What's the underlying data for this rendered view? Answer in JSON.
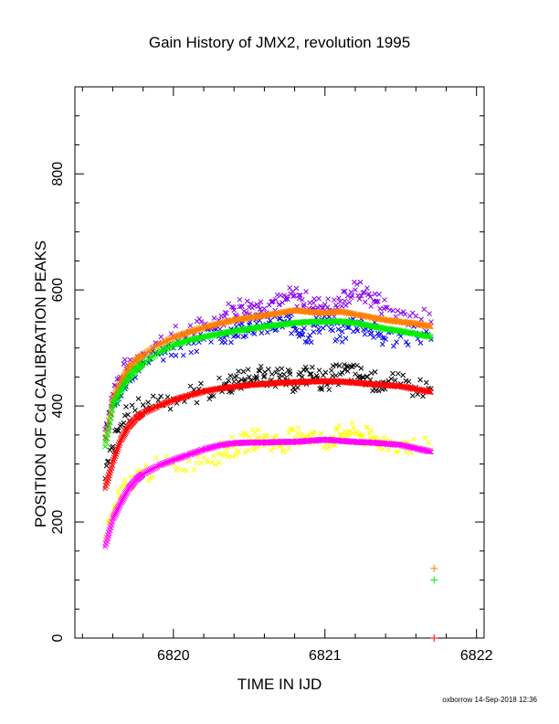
{
  "chart_data": {
    "type": "scatter",
    "title": "Gain History of JMX2, revolution 1995",
    "xlabel": "TIME IN IJD",
    "ylabel": "POSITION OF Cd CALIBRATION PEAKS",
    "xlim": [
      6819.35,
      6822.05
    ],
    "ylim": [
      0,
      950
    ],
    "xticks": [
      6820,
      6821,
      6822
    ],
    "xtick_labels": [
      "6820",
      "6821",
      "6822"
    ],
    "yticks": [
      0,
      200,
      400,
      600,
      800
    ],
    "ytick_labels": [
      "0",
      "200",
      "400",
      "600",
      "800"
    ],
    "grid": false,
    "footer": "oxborrow 14-Sep-2018 12:36",
    "series": [
      {
        "color": "#ff7f00",
        "marker": "x",
        "noisy": false,
        "x": [
          6819.55,
          6819.6,
          6819.65,
          6819.7,
          6819.75,
          6819.8,
          6819.9,
          6820.0,
          6820.1,
          6820.2,
          6820.3,
          6820.4,
          6820.5,
          6820.6,
          6820.7,
          6820.8,
          6820.9,
          6821.0,
          6821.1,
          6821.2,
          6821.3,
          6821.4,
          6821.5,
          6821.6,
          6821.7
        ],
        "y": [
          340,
          410,
          440,
          463,
          477,
          488,
          505,
          518,
          527,
          535,
          542,
          548,
          552,
          556,
          560,
          565,
          562,
          560,
          563,
          558,
          553,
          548,
          545,
          542,
          537
        ]
      },
      {
        "color": "#00ee00",
        "marker": "x",
        "noisy": false,
        "x": [
          6819.55,
          6819.6,
          6819.65,
          6819.7,
          6819.75,
          6819.8,
          6819.9,
          6820.0,
          6820.1,
          6820.2,
          6820.3,
          6820.4,
          6820.5,
          6820.6,
          6820.7,
          6820.8,
          6820.9,
          6821.0,
          6821.1,
          6821.2,
          6821.3,
          6821.4,
          6821.5,
          6821.6,
          6821.7
        ],
        "y": [
          330,
          400,
          425,
          447,
          462,
          473,
          492,
          505,
          513,
          519,
          524,
          529,
          533,
          537,
          540,
          543,
          545,
          545,
          546,
          543,
          538,
          533,
          529,
          524,
          519
        ]
      },
      {
        "color": "#ff0000",
        "marker": "x",
        "noisy": false,
        "x": [
          6819.55,
          6819.6,
          6819.65,
          6819.7,
          6819.75,
          6819.8,
          6819.9,
          6820.0,
          6820.1,
          6820.2,
          6820.3,
          6820.4,
          6820.5,
          6820.6,
          6820.7,
          6820.8,
          6820.9,
          6821.0,
          6821.1,
          6821.2,
          6821.3,
          6821.4,
          6821.5,
          6821.6,
          6821.7
        ],
        "y": [
          258,
          303,
          340,
          363,
          378,
          388,
          400,
          410,
          418,
          425,
          430,
          433,
          436,
          438,
          440,
          441,
          442,
          443,
          442,
          440,
          438,
          436,
          434,
          429,
          424
        ]
      },
      {
        "color": "#ff00ff",
        "marker": "x",
        "noisy": false,
        "x": [
          6819.55,
          6819.6,
          6819.65,
          6819.7,
          6819.75,
          6819.8,
          6819.9,
          6820.0,
          6820.1,
          6820.2,
          6820.3,
          6820.4,
          6820.5,
          6820.6,
          6820.7,
          6820.8,
          6820.9,
          6821.0,
          6821.1,
          6821.2,
          6821.3,
          6821.4,
          6821.5,
          6821.6,
          6821.7
        ],
        "y": [
          158,
          205,
          232,
          256,
          272,
          283,
          297,
          307,
          316,
          325,
          332,
          336,
          337,
          337,
          338,
          338,
          340,
          342,
          340,
          338,
          337,
          335,
          333,
          327,
          321
        ]
      },
      {
        "color": "#8800ee",
        "marker": "x",
        "noisy": true,
        "x": [
          6819.55,
          6819.6,
          6819.65,
          6819.7,
          6819.8,
          6819.9,
          6820.0,
          6820.1,
          6820.2,
          6820.3,
          6820.35,
          6820.4,
          6820.45,
          6820.5,
          6820.55,
          6820.6,
          6820.65,
          6820.7,
          6820.75,
          6820.8,
          6820.85,
          6820.9,
          6820.95,
          6821.0,
          6821.05,
          6821.1,
          6821.15,
          6821.2,
          6821.25,
          6821.3,
          6821.35,
          6821.4,
          6821.5,
          6821.6,
          6821.7
        ],
        "y": [
          360,
          420,
          450,
          470,
          490,
          508,
          520,
          528,
          538,
          548,
          560,
          565,
          572,
          570,
          575,
          568,
          580,
          575,
          585,
          590,
          583,
          578,
          570,
          575,
          565,
          580,
          590,
          600,
          595,
          588,
          580,
          570,
          560,
          555,
          545
        ]
      },
      {
        "color": "#0000ee",
        "marker": "x",
        "noisy": true,
        "x": [
          6819.55,
          6819.6,
          6819.65,
          6819.7,
          6819.8,
          6819.9,
          6820.0,
          6820.1,
          6820.2,
          6820.3,
          6820.35,
          6820.4,
          6820.45,
          6820.5,
          6820.55,
          6820.6,
          6820.65,
          6820.7,
          6820.75,
          6820.8,
          6820.85,
          6820.9,
          6820.95,
          6821.0,
          6821.05,
          6821.1,
          6821.15,
          6821.2,
          6821.25,
          6821.3,
          6821.35,
          6821.4,
          6821.5,
          6821.6,
          6821.7
        ],
        "y": [
          345,
          405,
          430,
          452,
          475,
          490,
          500,
          508,
          515,
          520,
          525,
          530,
          535,
          540,
          542,
          538,
          536,
          540,
          545,
          538,
          530,
          522,
          540,
          548,
          530,
          520,
          535,
          545,
          540,
          532,
          525,
          515,
          520,
          525,
          515
        ]
      },
      {
        "color": "#000000",
        "marker": "x",
        "noisy": true,
        "x": [
          6819.55,
          6819.6,
          6819.65,
          6819.7,
          6819.8,
          6819.9,
          6820.0,
          6820.1,
          6820.2,
          6820.3,
          6820.35,
          6820.4,
          6820.45,
          6820.5,
          6820.55,
          6820.6,
          6820.65,
          6820.7,
          6820.75,
          6820.8,
          6820.85,
          6820.9,
          6820.95,
          6821.0,
          6821.05,
          6821.1,
          6821.15,
          6821.2,
          6821.25,
          6821.3,
          6821.35,
          6821.4,
          6821.5,
          6821.6,
          6821.7
        ],
        "y": [
          275,
          330,
          365,
          385,
          402,
          410,
          412,
          418,
          425,
          430,
          438,
          442,
          445,
          450,
          448,
          452,
          455,
          448,
          445,
          440,
          450,
          455,
          448,
          440,
          452,
          455,
          460,
          455,
          450,
          445,
          440,
          440,
          438,
          432,
          430
        ]
      },
      {
        "color": "#ffff00",
        "marker": "x",
        "noisy": true,
        "x": [
          6819.55,
          6819.6,
          6819.65,
          6819.7,
          6819.8,
          6819.9,
          6820.0,
          6820.1,
          6820.2,
          6820.3,
          6820.35,
          6820.4,
          6820.45,
          6820.5,
          6820.55,
          6820.6,
          6820.65,
          6820.7,
          6820.75,
          6820.8,
          6820.85,
          6820.9,
          6820.95,
          6821.0,
          6821.05,
          6821.1,
          6821.15,
          6821.2,
          6821.25,
          6821.3,
          6821.35,
          6821.4,
          6821.5,
          6821.6,
          6821.7
        ],
        "y": [
          175,
          215,
          245,
          265,
          285,
          295,
          300,
          305,
          312,
          318,
          325,
          330,
          335,
          340,
          345,
          342,
          338,
          335,
          340,
          345,
          352,
          350,
          342,
          340,
          345,
          350,
          355,
          352,
          348,
          345,
          340,
          338,
          335,
          330,
          325
        ]
      },
      {
        "color": "#ff7f00",
        "marker": "+",
        "noisy": false,
        "x": [
          6821.72
        ],
        "y": [
          120
        ]
      },
      {
        "color": "#00ee00",
        "marker": "+",
        "noisy": false,
        "x": [
          6821.72
        ],
        "y": [
          100
        ]
      },
      {
        "color": "#ff0000",
        "marker": "+",
        "noisy": false,
        "x": [
          6821.72
        ],
        "y": [
          0
        ]
      }
    ]
  }
}
